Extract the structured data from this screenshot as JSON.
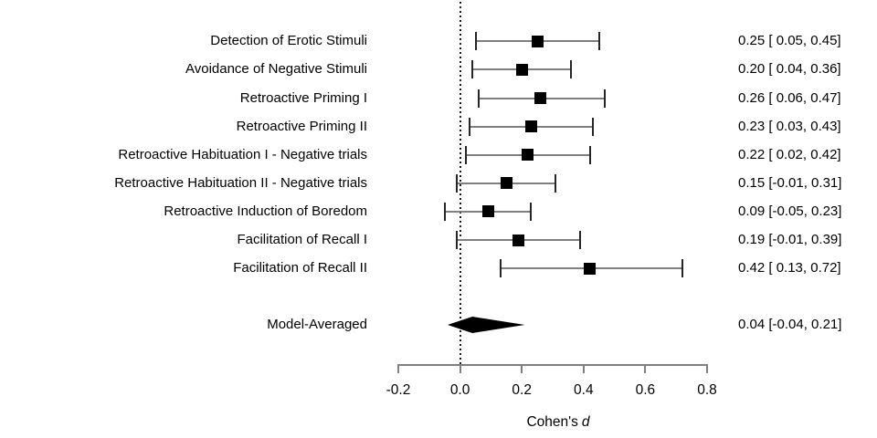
{
  "chart_data": {
    "type": "forest",
    "title": "",
    "xlabel": "Cohen's d",
    "xlabel_prefix": "Cohen's",
    "xlabel_variable": "d",
    "xlim": [
      -0.2,
      0.8
    ],
    "x_ticks": [
      -0.2,
      0.0,
      0.2,
      0.4,
      0.6,
      0.8
    ],
    "x_tick_labels": [
      "-0.2",
      "0.0",
      "0.2",
      "0.4",
      "0.6",
      "0.8"
    ],
    "reference_line": 0.0,
    "grid": false,
    "legend": false,
    "studies": [
      {
        "label": "Detection of Erotic Stimuli",
        "estimate": 0.25,
        "ci_lower": 0.05,
        "ci_upper": 0.45,
        "estimate_text": "0.25 [ 0.05, 0.45]"
      },
      {
        "label": "Avoidance of Negative Stimuli",
        "estimate": 0.2,
        "ci_lower": 0.04,
        "ci_upper": 0.36,
        "estimate_text": "0.20 [ 0.04, 0.36]"
      },
      {
        "label": "Retroactive Priming I",
        "estimate": 0.26,
        "ci_lower": 0.06,
        "ci_upper": 0.47,
        "estimate_text": "0.26 [ 0.06, 0.47]"
      },
      {
        "label": "Retroactive Priming II",
        "estimate": 0.23,
        "ci_lower": 0.03,
        "ci_upper": 0.43,
        "estimate_text": "0.23 [ 0.03, 0.43]"
      },
      {
        "label": "Retroactive Habituation I - Negative trials",
        "estimate": 0.22,
        "ci_lower": 0.02,
        "ci_upper": 0.42,
        "estimate_text": "0.22 [ 0.02, 0.42]"
      },
      {
        "label": "Retroactive Habituation II - Negative trials",
        "estimate": 0.15,
        "ci_lower": -0.01,
        "ci_upper": 0.31,
        "estimate_text": "0.15 [-0.01, 0.31]"
      },
      {
        "label": "Retroactive Induction of Boredom",
        "estimate": 0.09,
        "ci_lower": -0.05,
        "ci_upper": 0.23,
        "estimate_text": "0.09 [-0.05, 0.23]"
      },
      {
        "label": "Facilitation of Recall I",
        "estimate": 0.19,
        "ci_lower": -0.01,
        "ci_upper": 0.39,
        "estimate_text": "0.19 [-0.01, 0.39]"
      },
      {
        "label": "Facilitation of Recall II",
        "estimate": 0.42,
        "ci_lower": 0.13,
        "ci_upper": 0.72,
        "estimate_text": "0.42 [ 0.13, 0.72]"
      }
    ],
    "summary": {
      "label": "Model-Averaged",
      "estimate": 0.04,
      "ci_lower": -0.04,
      "ci_upper": 0.21,
      "estimate_text": "0.04 [-0.04, 0.21]"
    }
  },
  "style": {
    "background": "#ffffff",
    "text_color": "#000000",
    "interval_line_color": "#7f7f7f",
    "cap_color": "#262626",
    "point_color": "#000000",
    "diamond_color": "#000000",
    "axis_color": "#7f7f7f",
    "tick_label_color": "#000000",
    "reference_line_color": "#1a1a1a"
  }
}
